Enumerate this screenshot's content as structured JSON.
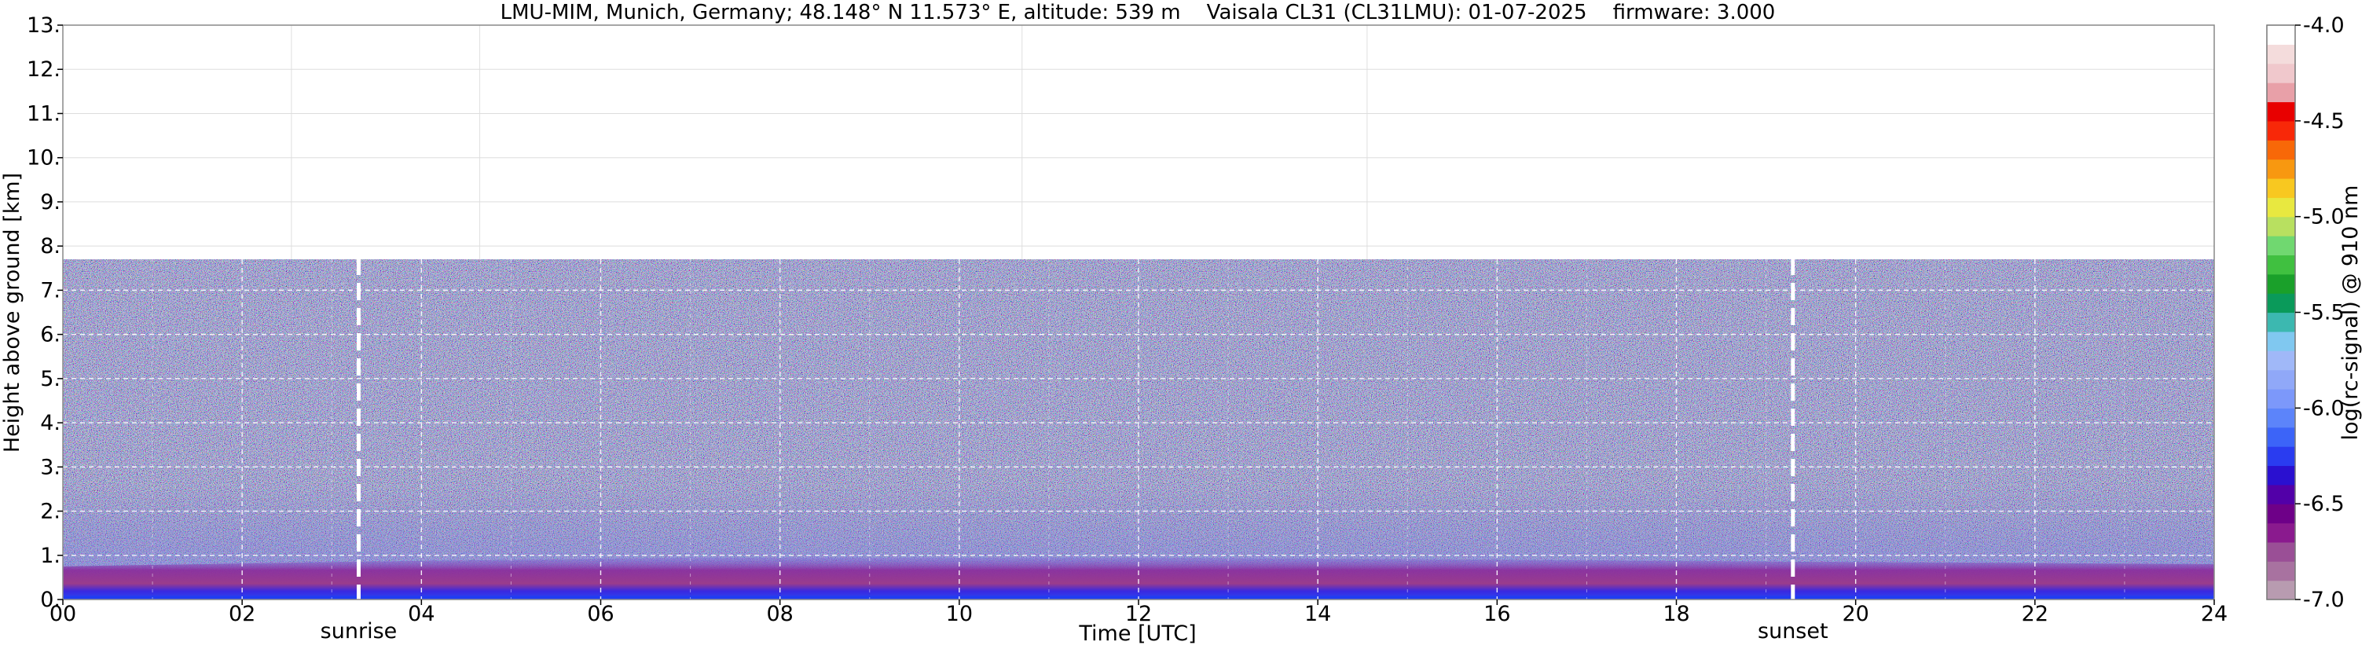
{
  "chart_data": {
    "type": "heatmap",
    "title": "LMU-MIM, Munich, Germany; 48.148° N 11.573° E, altitude: 539 m    Vaisala CL31 (CL31LMU): 01-07-2025    firmware: 3.000",
    "xlabel": "Time [UTC]",
    "ylabel": "Height above ground [km]",
    "xlim": [
      0,
      24
    ],
    "ylim": [
      0,
      13
    ],
    "x_ticks": [
      0,
      2,
      4,
      6,
      8,
      10,
      12,
      14,
      16,
      18,
      20,
      22,
      24
    ],
    "x_tick_labels": [
      "00",
      "02",
      "04",
      "06",
      "08",
      "10",
      "12",
      "14",
      "16",
      "18",
      "20",
      "22",
      "24"
    ],
    "y_ticks": [
      0,
      1,
      2,
      3,
      4,
      5,
      6,
      7,
      8,
      9,
      10,
      11,
      12,
      13
    ],
    "y_tick_labels": [
      "0.",
      "1.",
      "2.",
      "3.",
      "4.",
      "5.",
      "6.",
      "7.",
      "8.",
      "9.",
      "10.",
      "11.",
      "12.",
      "13."
    ],
    "grid": true,
    "data_max_height_km": 7.7,
    "events": [
      {
        "label": "sunrise",
        "time_utc": 3.3
      },
      {
        "label": "sunset",
        "time_utc": 19.3
      }
    ],
    "boundary_layer_km": [
      {
        "time_utc": 0,
        "top": 0.75
      },
      {
        "time_utc": 3,
        "top": 0.85
      },
      {
        "time_utc": 7,
        "top": 0.95
      },
      {
        "time_utc": 12,
        "top": 0.95
      },
      {
        "time_utc": 16,
        "top": 0.9
      },
      {
        "time_utc": 20,
        "top": 0.85
      },
      {
        "time_utc": 24,
        "top": 0.8
      }
    ],
    "colorbar": {
      "label": "log(rc-signal) @ 910 nm",
      "min": -7.0,
      "max": -4.0,
      "ticks": [
        -7.0,
        -6.5,
        -6.0,
        -5.5,
        -5.0,
        -4.5,
        -4.0
      ],
      "tick_labels": [
        "-7.0",
        "-6.5",
        "-6.0",
        "-5.5",
        "-5.0",
        "-4.5",
        "-4.0"
      ],
      "colors": [
        "#b89bb0",
        "#a872a0",
        "#9a4f96",
        "#8a1a8e",
        "#6e0088",
        "#5200a8",
        "#2a10d0",
        "#2a3cf0",
        "#3c64f8",
        "#5c84fa",
        "#7c98fa",
        "#90a8f8",
        "#a0b8f8",
        "#80c8f0",
        "#3cb8b0",
        "#0a9a5a",
        "#1aa02a",
        "#40c040",
        "#70d870",
        "#b8e060",
        "#e8e840",
        "#f8c820",
        "#f89810",
        "#f86808",
        "#f82808",
        "#e80000",
        "#e8a0a8",
        "#f0c8cc",
        "#f4dcdc",
        "#ffffff"
      ]
    }
  }
}
